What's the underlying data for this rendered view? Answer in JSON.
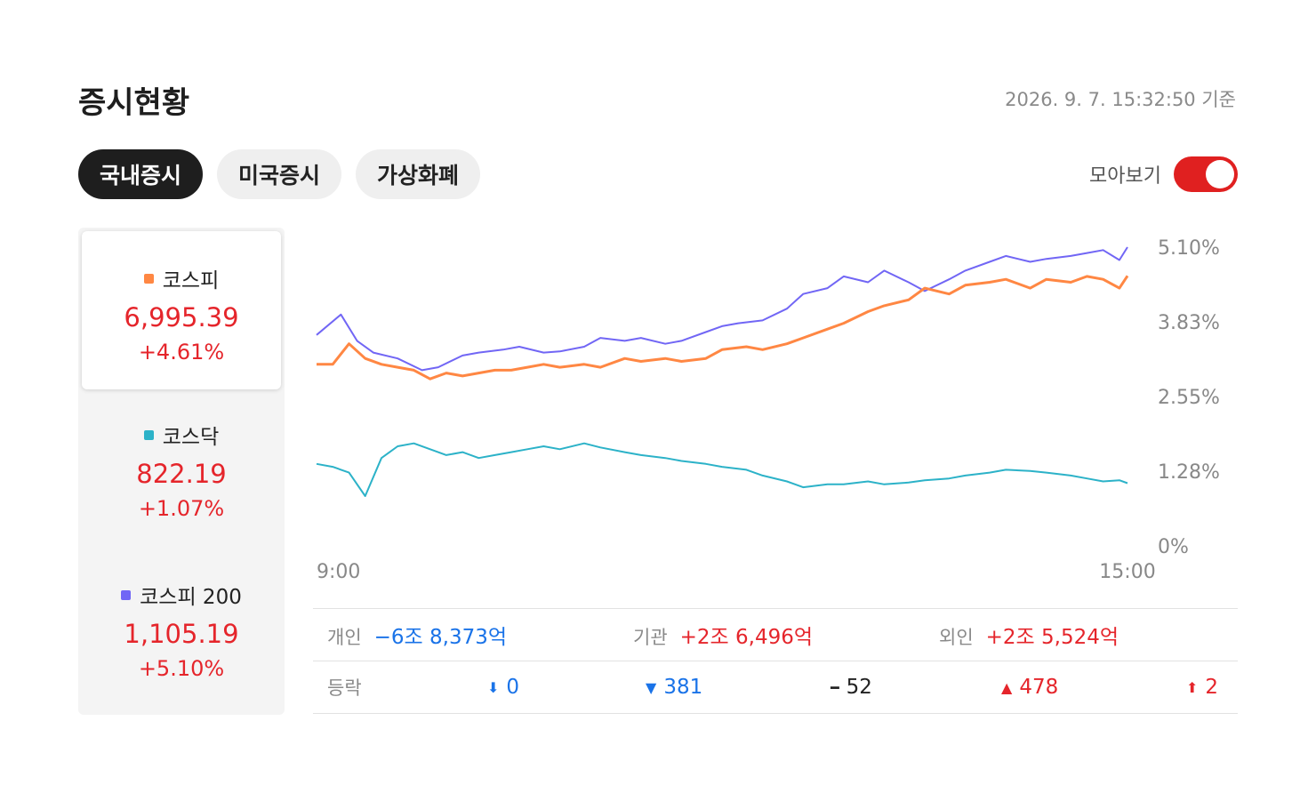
{
  "header": {
    "title": "증시현황",
    "timestamp": "2026. 9. 7. 15:32:50 기준"
  },
  "tabs": [
    {
      "label": "국내증시",
      "active": true
    },
    {
      "label": "미국증시",
      "active": false
    },
    {
      "label": "가상화폐",
      "active": false
    }
  ],
  "toggle": {
    "label": "모아보기",
    "on": true,
    "color": "#e02020"
  },
  "indices": [
    {
      "name": "코스피",
      "value": "6,995.39",
      "change": "+4.61%",
      "color": "#ff8743",
      "selected": true
    },
    {
      "name": "코스닥",
      "value": "822.19",
      "change": "+1.07%",
      "color": "#2cb2c8",
      "selected": false
    },
    {
      "name": "코스피 200",
      "value": "1,105.19",
      "change": "+5.10%",
      "color": "#7166f5",
      "selected": false
    }
  ],
  "chart_data": {
    "type": "line",
    "x_tick_labels": [
      "9:00",
      "15:00"
    ],
    "y_tick_labels": [
      "5.10%",
      "3.83%",
      "2.55%",
      "1.28%",
      "0%"
    ],
    "ylim": [
      0,
      5.1
    ],
    "x_range": [
      0,
      100
    ],
    "grid": false,
    "series": [
      {
        "name": "코스피 200",
        "color": "#7166f5",
        "x": [
          0,
          3,
          5,
          7,
          10,
          13,
          15,
          18,
          20,
          23,
          25,
          28,
          30,
          33,
          35,
          38,
          40,
          43,
          45,
          48,
          50,
          52,
          55,
          58,
          60,
          63,
          65,
          68,
          70,
          73,
          75,
          78,
          80,
          83,
          85,
          88,
          90,
          93,
          95,
          97,
          99,
          100
        ],
        "y": [
          3.6,
          3.95,
          3.5,
          3.3,
          3.2,
          3.0,
          3.05,
          3.25,
          3.3,
          3.35,
          3.4,
          3.3,
          3.32,
          3.4,
          3.55,
          3.5,
          3.55,
          3.45,
          3.5,
          3.65,
          3.75,
          3.8,
          3.85,
          4.05,
          4.3,
          4.4,
          4.6,
          4.5,
          4.7,
          4.5,
          4.35,
          4.55,
          4.7,
          4.85,
          4.95,
          4.85,
          4.9,
          4.95,
          5.0,
          5.05,
          4.88,
          5.1
        ]
      },
      {
        "name": "코스피",
        "color": "#ff8743",
        "x": [
          0,
          2,
          4,
          6,
          8,
          10,
          12,
          14,
          16,
          18,
          20,
          22,
          24,
          26,
          28,
          30,
          33,
          35,
          38,
          40,
          43,
          45,
          48,
          50,
          53,
          55,
          58,
          60,
          63,
          65,
          68,
          70,
          73,
          75,
          78,
          80,
          83,
          85,
          88,
          90,
          93,
          95,
          97,
          99,
          100
        ],
        "y": [
          3.1,
          3.1,
          3.45,
          3.2,
          3.1,
          3.05,
          3.0,
          2.85,
          2.95,
          2.9,
          2.95,
          3.0,
          3.0,
          3.05,
          3.1,
          3.05,
          3.1,
          3.05,
          3.2,
          3.15,
          3.2,
          3.15,
          3.2,
          3.35,
          3.4,
          3.35,
          3.45,
          3.55,
          3.7,
          3.8,
          4.0,
          4.1,
          4.2,
          4.4,
          4.3,
          4.45,
          4.5,
          4.55,
          4.4,
          4.55,
          4.5,
          4.6,
          4.55,
          4.4,
          4.61
        ]
      },
      {
        "name": "코스닥",
        "color": "#2cb2c8",
        "x": [
          0,
          2,
          4,
          6,
          8,
          10,
          12,
          14,
          16,
          18,
          20,
          22,
          24,
          26,
          28,
          30,
          33,
          35,
          38,
          40,
          43,
          45,
          48,
          50,
          53,
          55,
          58,
          60,
          63,
          65,
          68,
          70,
          73,
          75,
          78,
          80,
          83,
          85,
          88,
          90,
          93,
          95,
          97,
          99,
          100
        ],
        "y": [
          1.4,
          1.35,
          1.25,
          0.85,
          1.5,
          1.7,
          1.75,
          1.65,
          1.55,
          1.6,
          1.5,
          1.55,
          1.6,
          1.65,
          1.7,
          1.65,
          1.75,
          1.68,
          1.6,
          1.55,
          1.5,
          1.45,
          1.4,
          1.35,
          1.3,
          1.2,
          1.1,
          1.0,
          1.05,
          1.05,
          1.1,
          1.05,
          1.08,
          1.12,
          1.15,
          1.2,
          1.25,
          1.3,
          1.28,
          1.25,
          1.2,
          1.15,
          1.1,
          1.12,
          1.07
        ]
      }
    ]
  },
  "investors": [
    {
      "label": "개인",
      "value": "−6조 8,373억",
      "color": "blue"
    },
    {
      "label": "기관",
      "value": "+2조 6,496억",
      "color": "red"
    },
    {
      "label": "외인",
      "value": "+2조 5,524억",
      "color": "red"
    }
  ],
  "advance_decline": {
    "label": "등락",
    "items": [
      {
        "icon": "⬇",
        "icon_name": "lower-limit-arrow-icon",
        "value": "0",
        "color": "blue"
      },
      {
        "icon": "▼",
        "icon_name": "down-triangle-icon",
        "value": "381",
        "color": "blue"
      },
      {
        "icon": "━",
        "icon_name": "unchanged-dash-icon",
        "value": "52",
        "color": "black"
      },
      {
        "icon": "▲",
        "icon_name": "up-triangle-icon",
        "value": "478",
        "color": "red"
      },
      {
        "icon": "⬆",
        "icon_name": "upper-limit-arrow-icon",
        "value": "2",
        "color": "red"
      }
    ]
  }
}
